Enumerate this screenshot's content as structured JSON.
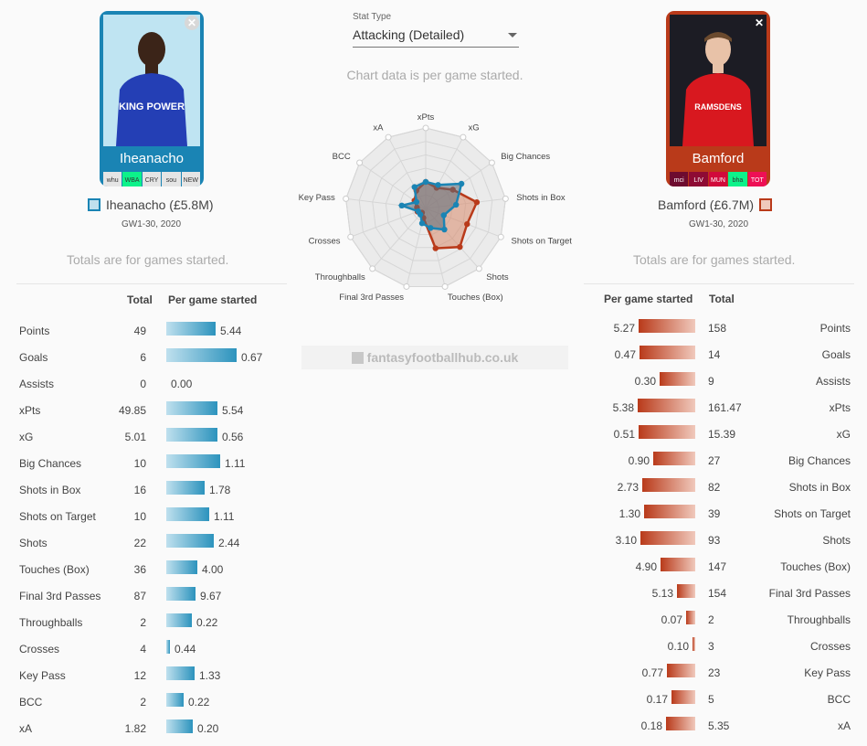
{
  "stat_type": {
    "label": "Stat Type",
    "value": "Attacking (Detailed)"
  },
  "chart_note": "Chart data is per game started.",
  "watermark": "fantasyfootballhub.co.uk",
  "left_player": {
    "name": "Iheanacho",
    "label": "Iheanacho (£5.8M)",
    "range": "GW1-30, 2020",
    "totals_note": "Totals are for games started.",
    "fixtures": [
      "whu",
      "WBA",
      "CRY",
      "sou",
      "NEW"
    ],
    "fixture_colors": [
      "#e5e5e5",
      "#0cf28a",
      "#e5e5e5",
      "#e5e5e5",
      "#e5e5e5"
    ],
    "color": "#1a84b4",
    "shirt_text": "KING POWER"
  },
  "right_player": {
    "name": "Bamford",
    "label": "Bamford (£6.7M)",
    "range": "GW1-30, 2020",
    "totals_note": "Totals are for games started.",
    "fixtures": [
      "mci",
      "LIV",
      "MUN",
      "bha",
      "TOT"
    ],
    "fixture_colors": [
      "#6d0b2f",
      "#8e0b34",
      "#d10a3b",
      "#0cf28a",
      "#ee0f55"
    ],
    "color": "#b93a1a",
    "shirt_text": "RAMSDENS"
  },
  "table_headers": {
    "total": "Total",
    "per_game": "Per game started"
  },
  "stats": [
    "Points",
    "Goals",
    "Assists",
    "xPts",
    "xG",
    "Big Chances",
    "Shots in Box",
    "Shots on Target",
    "Shots",
    "Touches (Box)",
    "Final 3rd Passes",
    "Throughballs",
    "Crosses",
    "Key Pass",
    "BCC",
    "xA"
  ],
  "left_rows": [
    {
      "total": "49",
      "pg": "5.44"
    },
    {
      "total": "6",
      "pg": "0.67"
    },
    {
      "total": "0",
      "pg": "0.00"
    },
    {
      "total": "49.85",
      "pg": "5.54"
    },
    {
      "total": "5.01",
      "pg": "0.56"
    },
    {
      "total": "10",
      "pg": "1.11"
    },
    {
      "total": "16",
      "pg": "1.78"
    },
    {
      "total": "10",
      "pg": "1.11"
    },
    {
      "total": "22",
      "pg": "2.44"
    },
    {
      "total": "36",
      "pg": "4.00"
    },
    {
      "total": "87",
      "pg": "9.67"
    },
    {
      "total": "2",
      "pg": "0.22"
    },
    {
      "total": "4",
      "pg": "0.44"
    },
    {
      "total": "12",
      "pg": "1.33"
    },
    {
      "total": "2",
      "pg": "0.22"
    },
    {
      "total": "1.82",
      "pg": "0.20"
    }
  ],
  "right_rows": [
    {
      "total": "158",
      "pg": "5.27"
    },
    {
      "total": "14",
      "pg": "0.47"
    },
    {
      "total": "9",
      "pg": "0.30"
    },
    {
      "total": "161.47",
      "pg": "5.38"
    },
    {
      "total": "15.39",
      "pg": "0.51"
    },
    {
      "total": "27",
      "pg": "0.90"
    },
    {
      "total": "82",
      "pg": "2.73"
    },
    {
      "total": "39",
      "pg": "1.30"
    },
    {
      "total": "93",
      "pg": "3.10"
    },
    {
      "total": "147",
      "pg": "4.90"
    },
    {
      "total": "154",
      "pg": "5.13"
    },
    {
      "total": "2",
      "pg": "0.07"
    },
    {
      "total": "3",
      "pg": "0.10"
    },
    {
      "total": "23",
      "pg": "0.77"
    },
    {
      "total": "5",
      "pg": "0.17"
    },
    {
      "total": "5.35",
      "pg": "0.18"
    }
  ],
  "left_bar_fill": [
    0.49,
    0.7,
    0,
    0.51,
    0.51,
    0.54,
    0.38,
    0.43,
    0.47,
    0.31,
    0.29,
    0.25,
    0.04,
    0.28,
    0.17,
    0.26
  ],
  "right_bar_fill": [
    0.62,
    0.61,
    0.39,
    0.63,
    0.62,
    0.46,
    0.58,
    0.56,
    0.6,
    0.38,
    0.2,
    0.1,
    0.03,
    0.31,
    0.26,
    0.32
  ],
  "radar": {
    "axes": [
      "xPts",
      "xG",
      "Big Chances",
      "Shots in Box",
      "Shots on Target",
      "Shots",
      "Touches (Box)",
      "Final 3rd Passes",
      "Throughballs",
      "Crosses",
      "Key Pass",
      "BCC",
      "xA"
    ],
    "left_values": [
      0.33,
      0.33,
      0.54,
      0.38,
      0.24,
      0.35,
      0.25,
      0.19,
      0.1,
      0.1,
      0.3,
      0.14,
      0.3
    ],
    "right_values": [
      0.33,
      0.29,
      0.41,
      0.64,
      0.55,
      0.64,
      0.51,
      0.12,
      0.07,
      0.11,
      0.11,
      0.17,
      0.25
    ],
    "left_color": "#1a84b4",
    "right_color": "#b93a1a"
  }
}
